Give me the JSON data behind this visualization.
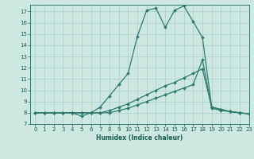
{
  "title": "",
  "xlabel": "Humidex (Indice chaleur)",
  "bg_color": "#cce8e0",
  "line_color": "#2e7b6e",
  "grid_color": "#aacccc",
  "xlim": [
    -0.5,
    23
  ],
  "ylim": [
    7,
    17.6
  ],
  "xticks": [
    0,
    1,
    2,
    3,
    4,
    5,
    6,
    7,
    8,
    9,
    10,
    11,
    12,
    13,
    14,
    15,
    16,
    17,
    18,
    19,
    20,
    21,
    22,
    23
  ],
  "yticks": [
    7,
    8,
    9,
    10,
    11,
    12,
    13,
    14,
    15,
    16,
    17
  ],
  "series": [
    {
      "x": [
        0,
        1,
        2,
        3,
        4,
        5,
        6,
        7,
        8,
        9,
        10,
        11,
        12,
        13,
        14,
        15,
        16,
        17,
        18,
        19,
        20,
        21,
        22,
        23
      ],
      "y": [
        8,
        8,
        8,
        8,
        8,
        7.7,
        8,
        8.5,
        9.5,
        10.5,
        11.5,
        14.8,
        17.1,
        17.3,
        15.6,
        17.1,
        17.5,
        16.1,
        14.7,
        8.5,
        8.3,
        8.1,
        8,
        7.9
      ]
    },
    {
      "x": [
        0,
        1,
        2,
        3,
        4,
        5,
        6,
        7,
        8,
        9,
        10,
        11,
        12,
        13,
        14,
        15,
        16,
        17,
        18,
        19,
        20,
        21,
        22,
        23
      ],
      "y": [
        8,
        8,
        8,
        8,
        8,
        8,
        8,
        8,
        8.2,
        8.5,
        8.8,
        9.2,
        9.6,
        10.0,
        10.4,
        10.7,
        11.1,
        11.5,
        11.9,
        8.5,
        8.3,
        8.1,
        8,
        7.9
      ]
    },
    {
      "x": [
        0,
        1,
        2,
        3,
        4,
        5,
        6,
        7,
        8,
        9,
        10,
        11,
        12,
        13,
        14,
        15,
        16,
        17,
        18,
        19,
        20,
        21,
        22,
        23
      ],
      "y": [
        8,
        8,
        8,
        8,
        8,
        8,
        8,
        8,
        8,
        8.2,
        8.4,
        8.7,
        9.0,
        9.3,
        9.6,
        9.9,
        10.2,
        10.5,
        12.7,
        8.4,
        8.2,
        8.1,
        8,
        7.9
      ]
    }
  ]
}
